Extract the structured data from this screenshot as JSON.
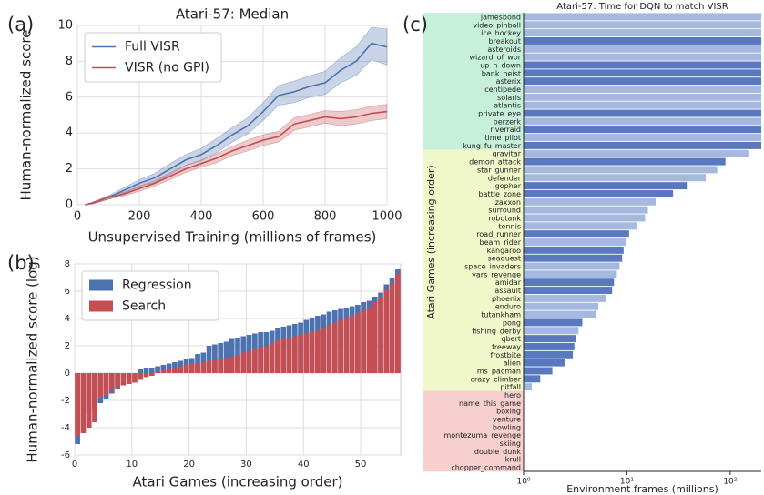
{
  "chart_data": [
    {
      "type": "line",
      "panel_label": "(a)",
      "title": "Atari-57: Median",
      "xlabel": "Unsupervised Training (millions of frames)",
      "ylabel": "Human-normalized score",
      "x": [
        25,
        50,
        100,
        150,
        200,
        250,
        300,
        350,
        400,
        450,
        500,
        550,
        600,
        650,
        700,
        750,
        800,
        850,
        900,
        950,
        1000
      ],
      "series": [
        {
          "name": "Full VISR",
          "color": "#4c72b0",
          "values": [
            0,
            0.1,
            0.4,
            0.8,
            1.2,
            1.5,
            2.0,
            2.5,
            2.8,
            3.3,
            3.9,
            4.4,
            5.2,
            6.1,
            6.3,
            6.6,
            6.8,
            7.5,
            8.0,
            9.0,
            8.8
          ],
          "errors": [
            0,
            0.05,
            0.1,
            0.15,
            0.2,
            0.25,
            0.3,
            0.3,
            0.35,
            0.4,
            0.4,
            0.45,
            0.5,
            0.55,
            0.6,
            0.6,
            0.65,
            0.7,
            0.8,
            0.9,
            1.0
          ]
        },
        {
          "name": "VISR (no GPI)",
          "color": "#c44e52",
          "values": [
            0,
            0.1,
            0.4,
            0.6,
            0.9,
            1.2,
            1.6,
            2.0,
            2.3,
            2.6,
            3.0,
            3.3,
            3.6,
            3.8,
            4.5,
            4.7,
            4.9,
            4.8,
            4.9,
            5.1,
            5.2
          ],
          "errors": [
            0,
            0.05,
            0.1,
            0.1,
            0.15,
            0.15,
            0.2,
            0.2,
            0.2,
            0.25,
            0.25,
            0.3,
            0.3,
            0.3,
            0.35,
            0.35,
            0.35,
            0.4,
            0.4,
            0.4,
            0.4
          ]
        }
      ],
      "xlim": [
        0,
        1000
      ],
      "xticks": [
        0,
        200,
        400,
        600,
        800,
        1000
      ],
      "ylim": [
        0,
        10
      ],
      "yticks": [
        0,
        2,
        4,
        6,
        8,
        10
      ],
      "grid": true,
      "legend": "upper left"
    },
    {
      "type": "bar",
      "panel_label": "(b)",
      "xlabel": "Atari Games (increasing order)",
      "ylabel": "Human-normalized score (log)",
      "series": [
        {
          "name": "Regression",
          "color": "#4c72b0",
          "values": [
            -5.2,
            -3.9,
            -3.0,
            -2.6,
            -2.2,
            -1.9,
            -1.5,
            -1.2,
            -0.3,
            -0.1,
            0.0,
            0.3,
            0.4,
            0.4,
            0.5,
            0.6,
            0.7,
            0.8,
            0.9,
            1.0,
            1.1,
            1.4,
            1.5,
            2.0,
            2.1,
            2.2,
            2.3,
            2.5,
            2.6,
            2.7,
            2.8,
            2.9,
            3.0,
            3.0,
            3.1,
            3.3,
            3.4,
            3.5,
            3.6,
            3.7,
            3.9,
            4.0,
            4.2,
            4.3,
            4.5,
            4.6,
            4.7,
            4.8,
            4.9,
            5.0,
            5.2,
            5.3,
            5.6,
            5.9,
            6.5,
            7.0,
            7.6
          ]
        },
        {
          "name": "Search",
          "color": "#c44e52",
          "values": [
            -4.6,
            -4.4,
            -4.0,
            -3.6,
            -1.8,
            -1.6,
            -1.3,
            -1.0,
            -0.9,
            -0.8,
            -0.7,
            -0.5,
            -0.3,
            -0.2,
            0.1,
            0.2,
            0.3,
            0.4,
            0.5,
            0.6,
            0.7,
            0.7,
            0.8,
            0.9,
            1.0,
            1.0,
            1.1,
            1.2,
            1.3,
            1.5,
            1.6,
            1.8,
            1.9,
            2.0,
            2.2,
            2.4,
            2.5,
            2.6,
            2.7,
            2.8,
            2.9,
            3.0,
            3.1,
            3.3,
            3.5,
            3.7,
            3.9,
            4.0,
            4.2,
            4.4,
            4.6,
            4.8,
            5.2,
            5.6,
            6.1,
            6.6,
            7.3
          ]
        }
      ],
      "xlim": [
        0,
        57
      ],
      "xticks": [
        0,
        10,
        20,
        30,
        40,
        50
      ],
      "ylim": [
        -6,
        8
      ],
      "yticks": [
        -6,
        -4,
        -2,
        0,
        2,
        4,
        6,
        8
      ],
      "grid": true,
      "legend": "upper left"
    },
    {
      "type": "barh",
      "panel_label": "(c)",
      "title": "Atari-57: Time for DQN to match VISR",
      "xlabel": "Environment frames (millions)",
      "ylabel": "Atari Games (increasing order)",
      "categories": [
        "jamesbond",
        "video_pinball",
        "ice_hockey",
        "breakout",
        "asteroids",
        "wizard_of_wor",
        "up_n_down",
        "bank_heist",
        "asterix",
        "centipede",
        "solaris",
        "atlantis",
        "private_eye",
        "berzerk",
        "riverraid",
        "time_pilot",
        "kung_fu_master",
        "gravitar",
        "demon_attack",
        "star_gunner",
        "defender",
        "gopher",
        "battle_zone",
        "zaxxon",
        "surround",
        "robotank",
        "tennis",
        "road_runner",
        "beam_rider",
        "kangaroo",
        "seaquest",
        "space_invaders",
        "yars_revenge",
        "amidar",
        "assault",
        "phoenix",
        "enduro",
        "tutankham",
        "pong",
        "fishing_derby",
        "qbert",
        "freeway",
        "frostbite",
        "alien",
        "ms_pacman",
        "crazy_climber",
        "pitfall",
        "hero",
        "name_this_game",
        "boxing",
        "venture",
        "bowling",
        "montezuma_revenge",
        "skiing",
        "double_dunk",
        "krull",
        "chopper_command"
      ],
      "values": [
        200,
        200,
        200,
        200,
        200,
        200,
        200,
        200,
        200,
        200,
        200,
        200,
        200,
        200,
        200,
        200,
        200,
        150,
        90,
        75,
        58,
        38,
        28,
        19,
        16,
        15,
        12.5,
        10.5,
        9.8,
        9.3,
        9,
        8.5,
        8,
        7.5,
        7.2,
        6.3,
        5.3,
        5.0,
        3.7,
        3.4,
        3.2,
        3.1,
        3.0,
        2.5,
        1.9,
        1.45,
        1.2,
        null,
        null,
        null,
        null,
        null,
        null,
        null,
        null,
        null,
        null
      ],
      "colors": [
        "#a5b8e0",
        "#a5b8e0",
        "#a5b8e0",
        "#5a78be",
        "#a5b8e0",
        "#a5b8e0",
        "#5a78be",
        "#5a78be",
        "#5a78be",
        "#a5b8e0",
        "#a5b8e0",
        "#a5b8e0",
        "#5a78be",
        "#a5b8e0",
        "#5a78be",
        "#a5b8e0",
        "#5a78be",
        "#a5b8e0",
        "#5a78be",
        "#a5b8e0",
        "#a5b8e0",
        "#5a78be",
        "#5a78be",
        "#a5b8e0",
        "#a5b8e0",
        "#a5b8e0",
        "#a5b8e0",
        "#5a78be",
        "#a5b8e0",
        "#5a78be",
        "#5a78be",
        "#a5b8e0",
        "#a5b8e0",
        "#5a78be",
        "#5a78be",
        "#a5b8e0",
        "#a5b8e0",
        "#a5b8e0",
        "#5a78be",
        "#a5b8e0",
        "#5a78be",
        "#5a78be",
        "#5a78be",
        "#5a78be",
        "#5a78be",
        "#5a78be",
        "#a5b8e0",
        null,
        null,
        null,
        null,
        null,
        null,
        null,
        null,
        null,
        null
      ],
      "background_colors": [
        "#c7f0db",
        "#c7f0db",
        "#c7f0db",
        "#c7f0db",
        "#c7f0db",
        "#c7f0db",
        "#c7f0db",
        "#c7f0db",
        "#c7f0db",
        "#c7f0db",
        "#c7f0db",
        "#c7f0db",
        "#c7f0db",
        "#c7f0db",
        "#c7f0db",
        "#c7f0db",
        "#c7f0db",
        "#f0f7c8",
        "#f0f7c8",
        "#f0f7c8",
        "#f0f7c8",
        "#f0f7c8",
        "#f0f7c8",
        "#f0f7c8",
        "#f0f7c8",
        "#f0f7c8",
        "#f0f7c8",
        "#f0f7c8",
        "#f0f7c8",
        "#f0f7c8",
        "#f0f7c8",
        "#f0f7c8",
        "#f0f7c8",
        "#f0f7c8",
        "#f0f7c8",
        "#f0f7c8",
        "#f0f7c8",
        "#f0f7c8",
        "#f0f7c8",
        "#f0f7c8",
        "#f0f7c8",
        "#f0f7c8",
        "#f0f7c8",
        "#f0f7c8",
        "#f0f7c8",
        "#f0f7c8",
        "#f0f7c8",
        "#f7cfcc",
        "#f7cfcc",
        "#f7cfcc",
        "#f7cfcc",
        "#f7cfcc",
        "#f7cfcc",
        "#f7cfcc",
        "#f7cfcc",
        "#f7cfcc",
        "#f7cfcc"
      ],
      "xlim": [
        1,
        200
      ],
      "log_x": true,
      "xticks": [
        {
          "value": 1,
          "label": "10⁰"
        },
        {
          "value": 10,
          "label": "10¹"
        },
        {
          "value": 100,
          "label": "10²"
        }
      ]
    }
  ]
}
